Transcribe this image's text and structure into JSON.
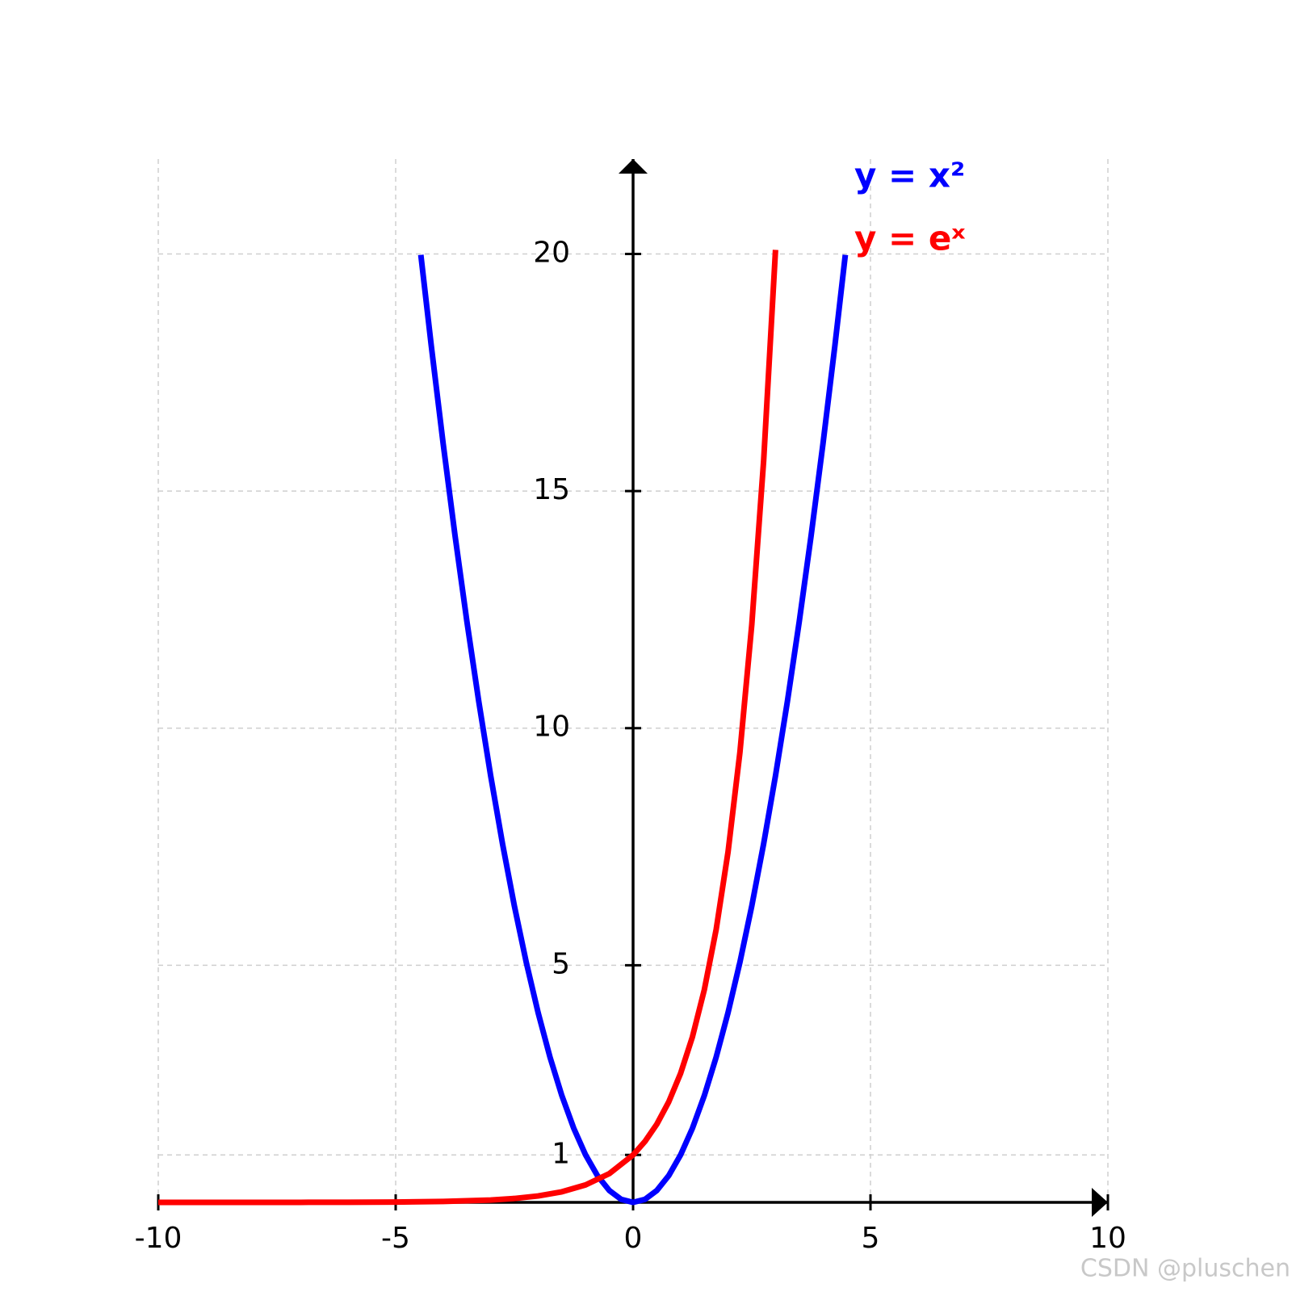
{
  "chart_data": {
    "type": "line",
    "xlim": [
      -10,
      10
    ],
    "ylim": [
      0,
      22
    ],
    "xticks": [
      -10,
      -5,
      0,
      5,
      10
    ],
    "yticks": [
      1,
      5,
      10,
      15,
      20
    ],
    "grid": true,
    "legend": "top-right",
    "series": [
      {
        "name": "y = x²",
        "color": "#0000ff",
        "x": [
          -4.47,
          -4.25,
          -4,
          -3.75,
          -3.5,
          -3.25,
          -3,
          -2.75,
          -2.5,
          -2.25,
          -2,
          -1.75,
          -1.5,
          -1.25,
          -1,
          -0.75,
          -0.5,
          -0.25,
          0,
          0.25,
          0.5,
          0.75,
          1,
          1.25,
          1.5,
          1.75,
          2,
          2.25,
          2.5,
          2.75,
          3,
          3.25,
          3.5,
          3.75,
          4,
          4.25,
          4.47
        ],
        "values": [
          19.98,
          18.0625,
          16,
          14.0625,
          12.25,
          10.5625,
          9,
          7.5625,
          6.25,
          5.0625,
          4,
          3.0625,
          2.25,
          1.5625,
          1,
          0.5625,
          0.25,
          0.0625,
          0,
          0.0625,
          0.25,
          0.5625,
          1,
          1.5625,
          2.25,
          3.0625,
          4,
          5.0625,
          6.25,
          7.5625,
          9,
          10.5625,
          12.25,
          14.0625,
          16,
          18.0625,
          19.98
        ]
      },
      {
        "name": "y = eˣ",
        "color": "#ff0000",
        "x": [
          -10,
          -9,
          -8,
          -7,
          -6,
          -5,
          -4,
          -3,
          -2.5,
          -2,
          -1.5,
          -1,
          -0.5,
          0,
          0.25,
          0.5,
          0.75,
          1,
          1.25,
          1.5,
          1.75,
          2,
          2.25,
          2.5,
          2.75,
          3
        ],
        "values": [
          5e-05,
          0.0001,
          0.0003,
          0.0009,
          0.0025,
          0.0067,
          0.0183,
          0.0498,
          0.0821,
          0.1353,
          0.2231,
          0.3679,
          0.6065,
          1,
          1.284,
          1.6487,
          2.117,
          2.7183,
          3.4903,
          4.4817,
          5.7546,
          7.3891,
          9.4877,
          12.1825,
          15.6426,
          20.0855
        ]
      }
    ],
    "watermark": "CSDN @pluschen"
  }
}
